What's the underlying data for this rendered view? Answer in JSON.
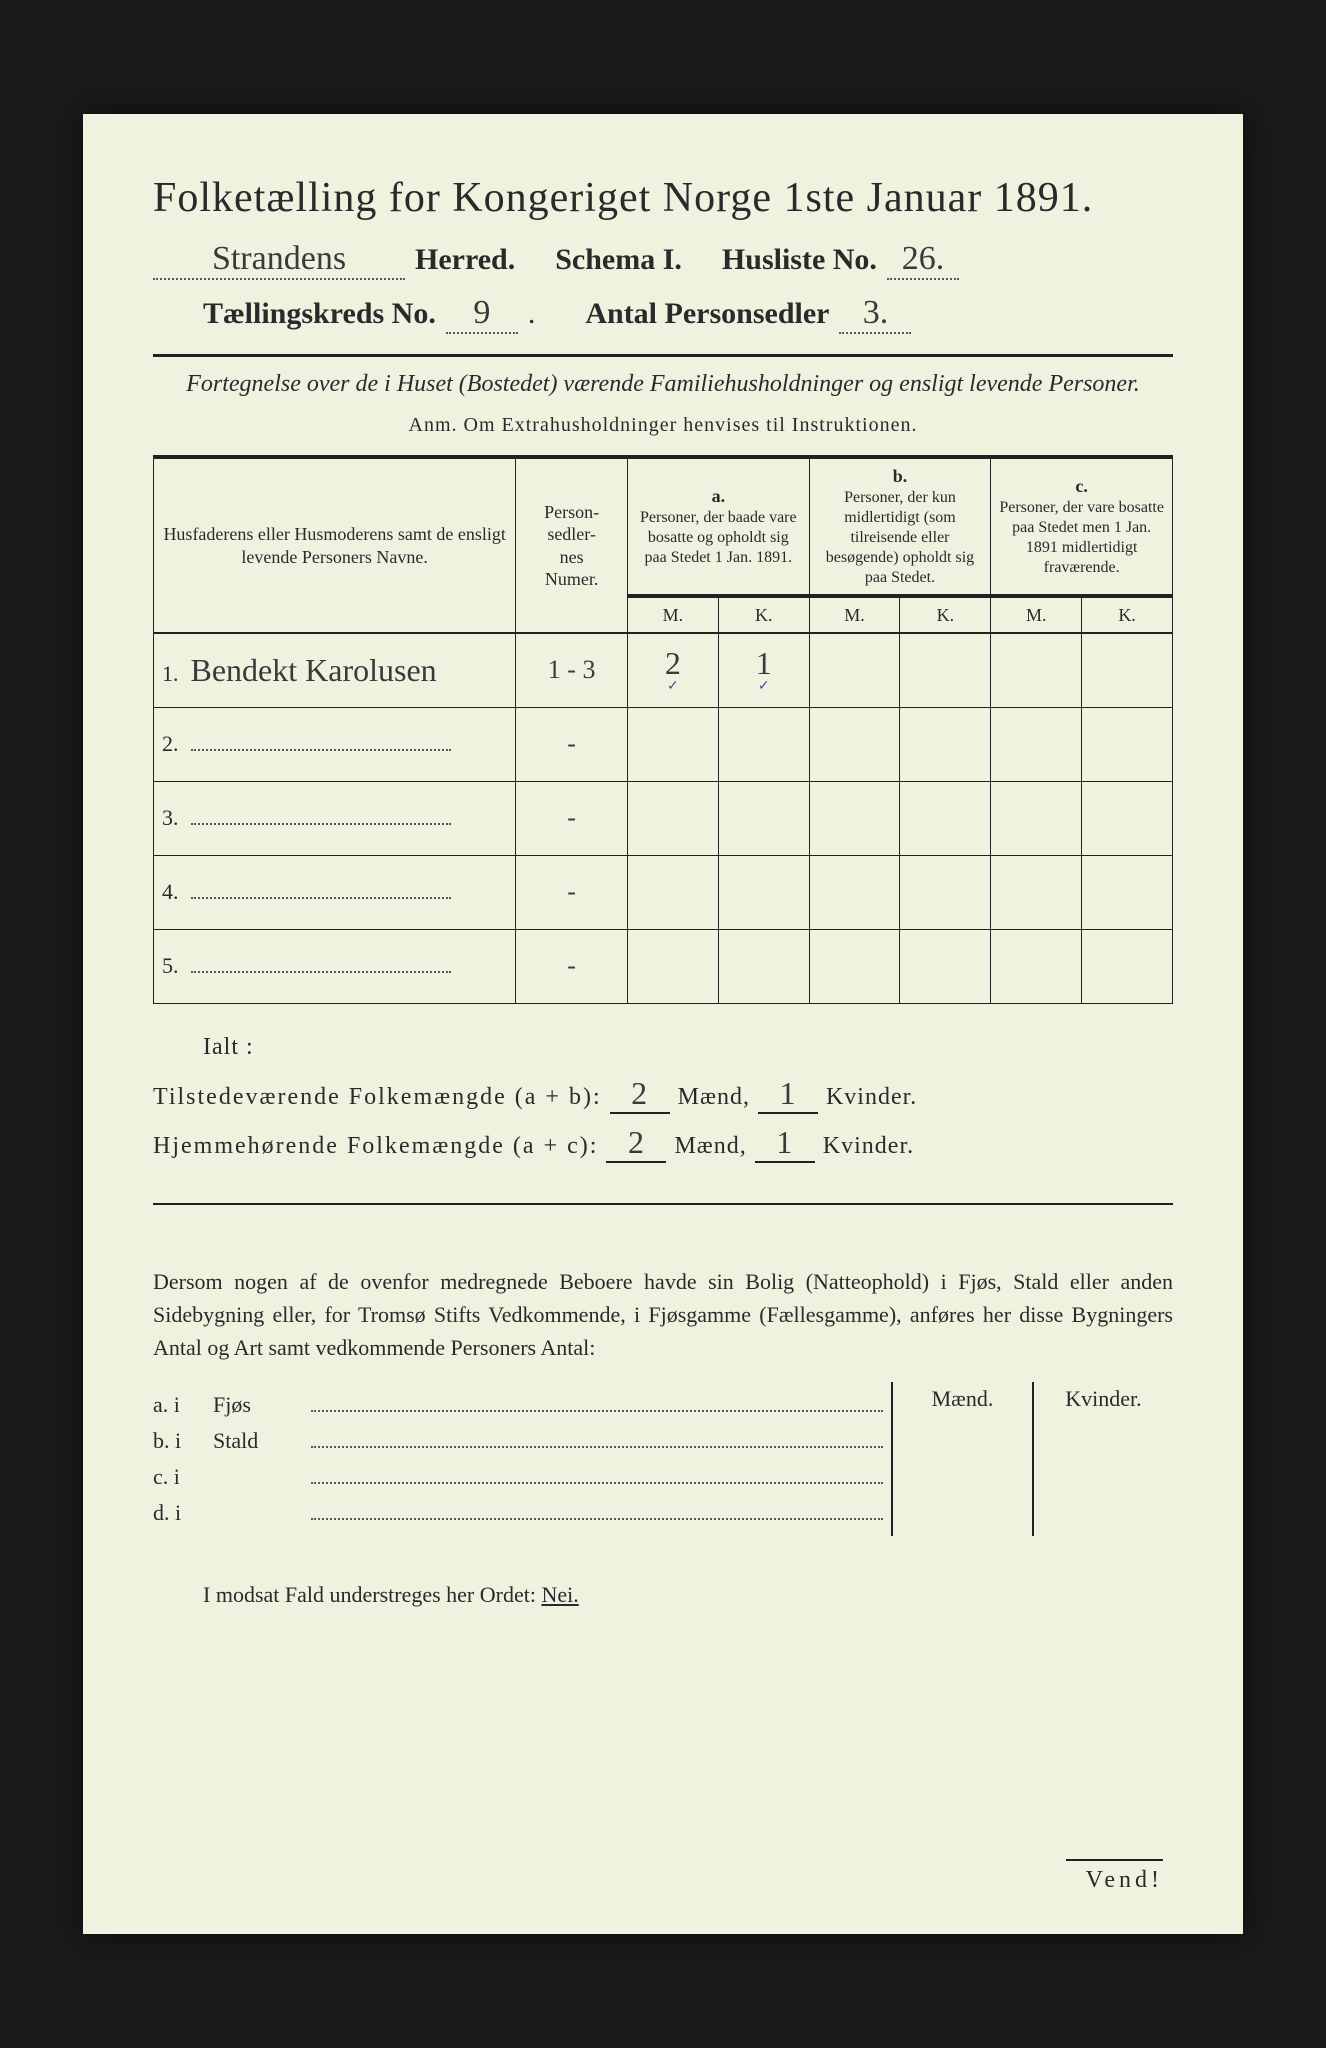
{
  "header": {
    "title": "Folketælling for Kongeriget Norge 1ste Januar 1891.",
    "herred_value": "Strandens",
    "herred_label": "Herred.",
    "schema_label": "Schema I.",
    "husliste_label": "Husliste No.",
    "husliste_value": "26.",
    "kreds_label": "Tællingskreds No.",
    "kreds_value": "9",
    "personsedler_label": "Antal Personsedler",
    "personsedler_value": "3."
  },
  "subtitle": "Fortegnelse over de i Huset (Bostedet) værende Familiehusholdninger og ensligt levende Personer.",
  "anm": "Anm.  Om Extrahusholdninger henvises til Instruktionen.",
  "table": {
    "col_names": "Husfaderens eller Husmoderens samt de ensligt levende Personers Navne.",
    "col_num": "Person-\nsedler-\nnes\nNumer.",
    "col_a_head": "a.",
    "col_a": "Personer, der baade vare bosatte og opholdt sig paa Stedet 1 Jan. 1891.",
    "col_b_head": "b.",
    "col_b": "Personer, der kun midlertidigt (som tilreisende eller besøgende) opholdt sig paa Stedet.",
    "col_c_head": "c.",
    "col_c": "Personer, der vare bosatte paa Stedet men 1 Jan. 1891 midlertidigt fraværende.",
    "m": "M.",
    "k": "K.",
    "rows": [
      {
        "n": "1.",
        "name": "Bendekt Karolusen",
        "num": "1 - 3",
        "a_m": "2",
        "a_k": "1"
      },
      {
        "n": "2.",
        "name": "",
        "num": "-",
        "a_m": "",
        "a_k": ""
      },
      {
        "n": "3.",
        "name": "",
        "num": "-",
        "a_m": "",
        "a_k": ""
      },
      {
        "n": "4.",
        "name": "",
        "num": "-",
        "a_m": "",
        "a_k": ""
      },
      {
        "n": "5.",
        "name": "",
        "num": "-",
        "a_m": "",
        "a_k": ""
      }
    ]
  },
  "totals": {
    "ialt": "Ialt :",
    "line1_label": "Tilstedeværende Folkemængde (a + b):",
    "line2_label": "Hjemmehørende Folkemængde (a + c):",
    "maend": "Mænd,",
    "kvinder": "Kvinder.",
    "l1_m": "2",
    "l1_k": "1",
    "l2_m": "2",
    "l2_k": "1"
  },
  "note": "Dersom nogen af de ovenfor medregnede Beboere havde sin Bolig (Natteophold) i Fjøs, Stald eller anden Sidebygning eller, for Tromsø Stifts Vedkommende, i Fjøsgamme (Fællesgamme), anføres her disse Bygningers Antal og Art samt vedkommende Personers Antal:",
  "side": {
    "m_label": "Mænd.",
    "k_label": "Kvinder.",
    "rows": [
      {
        "l": "a.  i",
        "k": "Fjøs"
      },
      {
        "l": "b.  i",
        "k": "Stald"
      },
      {
        "l": "c.  i",
        "k": ""
      },
      {
        "l": "d.  i",
        "k": ""
      }
    ]
  },
  "nei_line": "I modsat Fald understreges her Ordet:",
  "nei": "Nei.",
  "vend": "Vend!",
  "colors": {
    "paper_bg": "#eef3e0",
    "ink": "#2a2a2a",
    "page_bg": "#1a1a1a",
    "tick": "#6a3fa0"
  },
  "typography": {
    "title_fontsize_pt": 32,
    "body_fontsize_pt": 16,
    "font_family": "serif"
  }
}
